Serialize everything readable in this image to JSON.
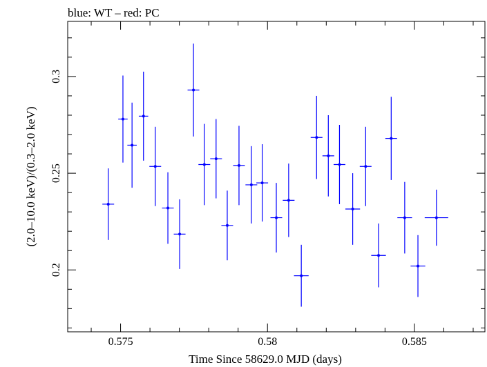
{
  "chart_data": {
    "type": "scatter",
    "title": "blue: WT – red: PC",
    "xlabel": "Time Since 58629.0 MJD (days)",
    "ylabel": "(2.0–10.0 keV)/(0.3–2.0 keV)",
    "xlim": [
      0.5732,
      0.5874
    ],
    "ylim": [
      0.168,
      0.3285
    ],
    "xticks": [
      {
        "value": 0.575,
        "label": "0.575"
      },
      {
        "value": 0.58,
        "label": "0.58"
      },
      {
        "value": 0.585,
        "label": "0.585"
      }
    ],
    "yticks": [
      {
        "value": 0.2,
        "label": "0.2"
      },
      {
        "value": 0.25,
        "label": "0.25"
      },
      {
        "value": 0.3,
        "label": "0.3"
      }
    ],
    "grid": false,
    "series": [
      {
        "color": "#0000ff",
        "points": [
          {
            "x": 0.57458,
            "y": 0.234,
            "xerr": 0.0002,
            "yerr": 0.0185
          },
          {
            "x": 0.57508,
            "y": 0.278,
            "xerr": 0.00016,
            "yerr": 0.0225
          },
          {
            "x": 0.57539,
            "y": 0.2645,
            "xerr": 0.00016,
            "yerr": 0.022
          },
          {
            "x": 0.57578,
            "y": 0.2795,
            "xerr": 0.00016,
            "yerr": 0.023
          },
          {
            "x": 0.57618,
            "y": 0.2535,
            "xerr": 0.0002,
            "yerr": 0.0205
          },
          {
            "x": 0.57661,
            "y": 0.232,
            "xerr": 0.0002,
            "yerr": 0.0185
          },
          {
            "x": 0.57701,
            "y": 0.2185,
            "xerr": 0.0002,
            "yerr": 0.018
          },
          {
            "x": 0.57748,
            "y": 0.293,
            "xerr": 0.0002,
            "yerr": 0.024
          },
          {
            "x": 0.57785,
            "y": 0.2545,
            "xerr": 0.0002,
            "yerr": 0.021
          },
          {
            "x": 0.57825,
            "y": 0.2575,
            "xerr": 0.0002,
            "yerr": 0.0205
          },
          {
            "x": 0.57863,
            "y": 0.223,
            "xerr": 0.0002,
            "yerr": 0.018
          },
          {
            "x": 0.57903,
            "y": 0.254,
            "xerr": 0.0002,
            "yerr": 0.0205
          },
          {
            "x": 0.57945,
            "y": 0.244,
            "xerr": 0.0002,
            "yerr": 0.02
          },
          {
            "x": 0.57982,
            "y": 0.245,
            "xerr": 0.0002,
            "yerr": 0.02
          },
          {
            "x": 0.5803,
            "y": 0.227,
            "xerr": 0.0002,
            "yerr": 0.018
          },
          {
            "x": 0.58072,
            "y": 0.236,
            "xerr": 0.0002,
            "yerr": 0.019
          },
          {
            "x": 0.58115,
            "y": 0.197,
            "xerr": 0.00025,
            "yerr": 0.016
          },
          {
            "x": 0.58167,
            "y": 0.2685,
            "xerr": 0.0002,
            "yerr": 0.0215
          },
          {
            "x": 0.58207,
            "y": 0.259,
            "xerr": 0.0002,
            "yerr": 0.021
          },
          {
            "x": 0.58245,
            "y": 0.2545,
            "xerr": 0.0002,
            "yerr": 0.0205
          },
          {
            "x": 0.5829,
            "y": 0.2315,
            "xerr": 0.00025,
            "yerr": 0.0185
          },
          {
            "x": 0.58334,
            "y": 0.2535,
            "xerr": 0.0002,
            "yerr": 0.0205
          },
          {
            "x": 0.58378,
            "y": 0.2075,
            "xerr": 0.00025,
            "yerr": 0.0165
          },
          {
            "x": 0.58421,
            "y": 0.268,
            "xerr": 0.0002,
            "yerr": 0.0215
          },
          {
            "x": 0.58467,
            "y": 0.227,
            "xerr": 0.00025,
            "yerr": 0.0185
          },
          {
            "x": 0.58512,
            "y": 0.202,
            "xerr": 0.00025,
            "yerr": 0.016
          },
          {
            "x": 0.58575,
            "y": 0.227,
            "xerr": 0.0004,
            "yerr": 0.0145
          }
        ]
      }
    ]
  }
}
